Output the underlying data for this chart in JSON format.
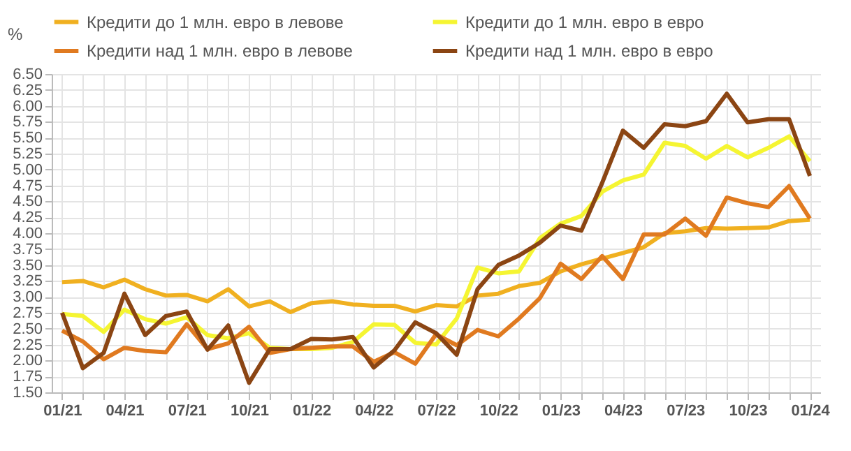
{
  "chart_data": {
    "type": "line",
    "ylabel": "%",
    "categories": [
      "01/21",
      null,
      null,
      "04/21",
      null,
      null,
      "07/21",
      null,
      null,
      "10/21",
      null,
      null,
      "01/22",
      null,
      null,
      "04/22",
      null,
      null,
      "07/22",
      null,
      null,
      "10/22",
      null,
      null,
      "01/23",
      null,
      null,
      "04/23",
      null,
      null,
      "07/23",
      null,
      null,
      "10/23",
      null,
      null,
      "01/24"
    ],
    "ylim": [
      1.5,
      6.5
    ],
    "yticks": [
      {
        "value": 1.5,
        "label": "1.50"
      },
      {
        "value": 1.75,
        "label": "1.75"
      },
      {
        "value": 2,
        "label": "2.00"
      },
      {
        "value": 2.25,
        "label": "2.25"
      },
      {
        "value": 2.5,
        "label": "2.50"
      },
      {
        "value": 2.75,
        "label": "2.75"
      },
      {
        "value": 3,
        "label": "3.00"
      },
      {
        "value": 3.25,
        "label": "3.25"
      },
      {
        "value": 3.5,
        "label": "3.50"
      },
      {
        "value": 3.75,
        "label": "3.75"
      },
      {
        "value": 4,
        "label": "4.00"
      },
      {
        "value": 4.25,
        "label": "4.25"
      },
      {
        "value": 4.5,
        "label": "4.50"
      },
      {
        "value": 4.75,
        "label": "4.75"
      },
      {
        "value": 5,
        "label": "5.00"
      },
      {
        "value": 5.25,
        "label": "5.25"
      },
      {
        "value": 5.5,
        "label": "5.50"
      },
      {
        "value": 5.75,
        "label": "5.75"
      },
      {
        "value": 6,
        "label": "6.00"
      },
      {
        "value": 6.25,
        "label": "6.25"
      },
      {
        "value": 6.5,
        "label": "6.50"
      }
    ],
    "grid": true,
    "legend": "top",
    "series": [
      {
        "name": "Кредити до 1 млн. евро в левове",
        "color": "#f0b020",
        "values": [
          3.23,
          3.25,
          3.15,
          3.27,
          3.12,
          3.02,
          3.03,
          2.93,
          3.12,
          2.85,
          2.93,
          2.76,
          2.9,
          2.93,
          2.88,
          2.86,
          2.86,
          2.77,
          2.87,
          2.85,
          3.02,
          3.05,
          3.17,
          3.22,
          3.4,
          3.51,
          3.6,
          3.69,
          3.78,
          4.0,
          4.03,
          4.08,
          4.07,
          4.08,
          4.09,
          4.19,
          4.21
        ]
      },
      {
        "name": "Кредити до 1 млн. евро в евро",
        "color": "#f5f532",
        "values": [
          2.73,
          2.7,
          2.45,
          2.8,
          2.65,
          2.58,
          2.68,
          2.4,
          2.35,
          2.43,
          2.2,
          2.18,
          2.18,
          2.2,
          2.29,
          2.57,
          2.56,
          2.28,
          2.25,
          2.66,
          3.46,
          3.37,
          3.4,
          3.92,
          4.15,
          4.27,
          4.65,
          4.83,
          4.92,
          5.42,
          5.37,
          5.17,
          5.37,
          5.19,
          5.34,
          5.52,
          5.13
        ]
      },
      {
        "name": "Кредити над 1 млн. евро в левове",
        "color": "#e07a20",
        "values": [
          2.47,
          2.3,
          2.02,
          2.2,
          2.15,
          2.13,
          2.57,
          2.18,
          2.27,
          2.53,
          2.12,
          2.18,
          2.2,
          2.22,
          2.22,
          1.98,
          2.13,
          1.95,
          2.41,
          2.24,
          2.48,
          2.38,
          2.66,
          2.98,
          3.52,
          3.28,
          3.64,
          3.28,
          3.98,
          3.98,
          4.23,
          3.96,
          4.56,
          4.47,
          4.41,
          4.74,
          4.23
        ]
      },
      {
        "name": "Кредити над 1 млн. евро в евро",
        "color": "#8b4513",
        "values": [
          2.75,
          1.88,
          2.12,
          3.05,
          2.4,
          2.7,
          2.77,
          2.17,
          2.55,
          1.65,
          2.18,
          2.18,
          2.34,
          2.33,
          2.37,
          1.89,
          2.16,
          2.6,
          2.43,
          2.09,
          3.12,
          3.5,
          3.65,
          3.85,
          4.12,
          4.04,
          4.79,
          5.61,
          5.34,
          5.71,
          5.68,
          5.76,
          6.19,
          5.74,
          5.79,
          5.79,
          4.9
        ]
      }
    ]
  }
}
